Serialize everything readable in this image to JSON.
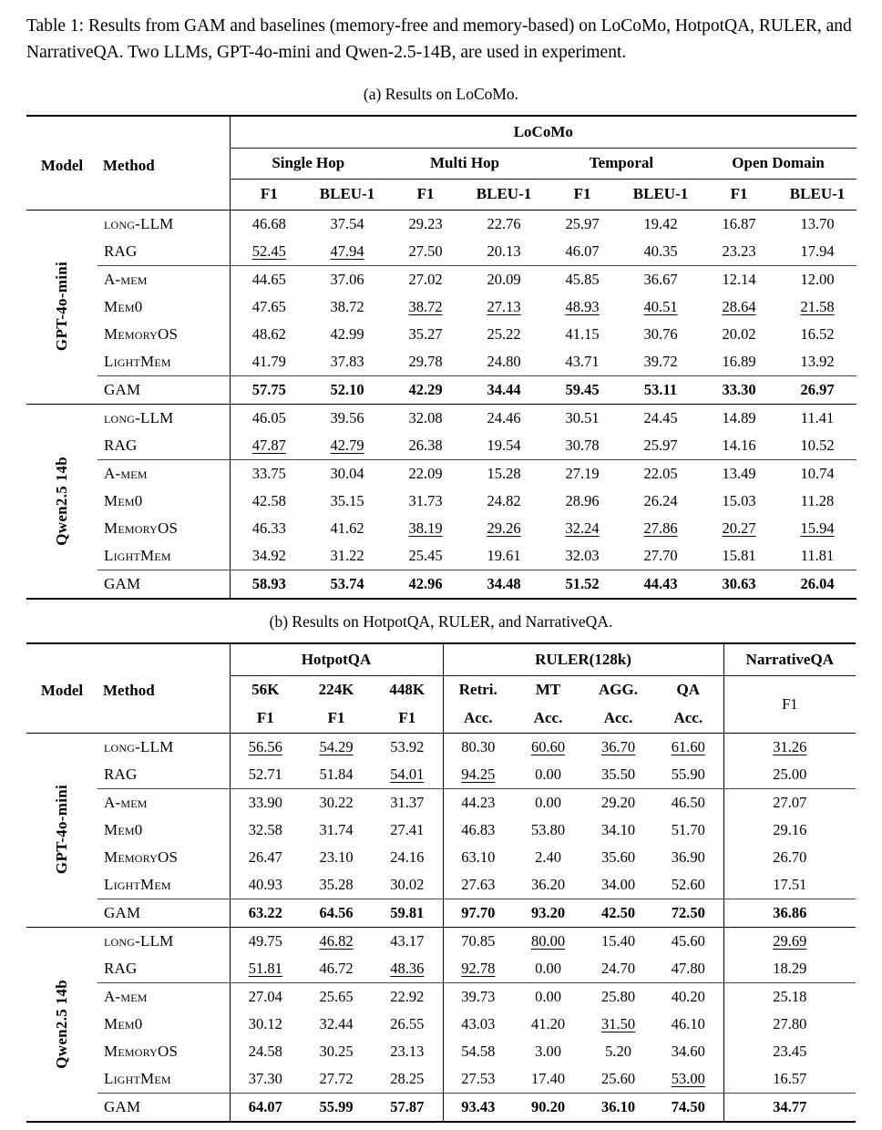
{
  "caption": "Table 1: Results from GAM and baselines (memory-free and memory-based) on LoCoMo, HotpotQA, RULER, and NarrativeQA. Two LLMs, GPT-4o-mini and Qwen-2.5-14B, are used in experiment.",
  "table_a": {
    "subcaption": "(a) Results on LoCoMo.",
    "header": {
      "model": "Model",
      "method": "Method",
      "dataset": "LoCoMo",
      "groups": [
        "Single Hop",
        "Multi Hop",
        "Temporal",
        "Open Domain"
      ],
      "metrics": [
        "F1",
        "BLEU-1"
      ]
    },
    "vline_value_cols": [
      0
    ],
    "blocks": [
      {
        "model": "GPT-4o-mini",
        "sep_below_block": true,
        "rows": [
          {
            "method": "long-LLM",
            "values": [
              "46.68",
              "37.54",
              "29.23",
              "22.76",
              "25.97",
              "19.42",
              "16.87",
              "13.70"
            ],
            "u": []
          },
          {
            "method": "RAG",
            "values": [
              "52.45",
              "47.94",
              "27.50",
              "20.13",
              "46.07",
              "40.35",
              "23.23",
              "17.94"
            ],
            "u": [
              0,
              1
            ],
            "sep_below": "partial"
          },
          {
            "method": "A-mem",
            "values": [
              "44.65",
              "37.06",
              "27.02",
              "20.09",
              "45.85",
              "36.67",
              "12.14",
              "12.00"
            ],
            "u": []
          },
          {
            "method": "Mem0",
            "values": [
              "47.65",
              "38.72",
              "38.72",
              "27.13",
              "48.93",
              "40.51",
              "28.64",
              "21.58"
            ],
            "u": [
              2,
              3,
              4,
              5,
              6,
              7
            ]
          },
          {
            "method": "MemoryOS",
            "values": [
              "48.62",
              "42.99",
              "35.27",
              "25.22",
              "41.15",
              "30.76",
              "20.02",
              "16.52"
            ],
            "u": []
          },
          {
            "method": "LightMem",
            "values": [
              "41.79",
              "37.83",
              "29.78",
              "24.80",
              "43.71",
              "39.72",
              "16.89",
              "13.92"
            ],
            "u": [],
            "sep_below": "partial"
          },
          {
            "method": "GAM",
            "values": [
              "57.75",
              "52.10",
              "42.29",
              "34.44",
              "59.45",
              "53.11",
              "33.30",
              "26.97"
            ],
            "u": [],
            "bold": true,
            "sep_below": "full"
          }
        ]
      },
      {
        "model": "Qwen2.5 14b",
        "sep_below_block": false,
        "rows": [
          {
            "method": "long-LLM",
            "values": [
              "46.05",
              "39.56",
              "32.08",
              "24.46",
              "30.51",
              "24.45",
              "14.89",
              "11.41"
            ],
            "u": []
          },
          {
            "method": "RAG",
            "values": [
              "47.87",
              "42.79",
              "26.38",
              "19.54",
              "30.78",
              "25.97",
              "14.16",
              "10.52"
            ],
            "u": [
              0,
              1
            ],
            "sep_below": "partial"
          },
          {
            "method": "A-mem",
            "values": [
              "33.75",
              "30.04",
              "22.09",
              "15.28",
              "27.19",
              "22.05",
              "13.49",
              "10.74"
            ],
            "u": []
          },
          {
            "method": "Mem0",
            "values": [
              "42.58",
              "35.15",
              "31.73",
              "24.82",
              "28.96",
              "26.24",
              "15.03",
              "11.28"
            ],
            "u": []
          },
          {
            "method": "MemoryOS",
            "values": [
              "46.33",
              "41.62",
              "38.19",
              "29.26",
              "32.24",
              "27.86",
              "20.27",
              "15.94"
            ],
            "u": [
              2,
              3,
              4,
              5,
              6,
              7
            ]
          },
          {
            "method": "LightMem",
            "values": [
              "34.92",
              "31.22",
              "25.45",
              "19.61",
              "32.03",
              "27.70",
              "15.81",
              "11.81"
            ],
            "u": [],
            "sep_below": "partial"
          },
          {
            "method": "GAM",
            "values": [
              "58.93",
              "53.74",
              "42.96",
              "34.48",
              "51.52",
              "44.43",
              "30.63",
              "26.04"
            ],
            "u": [],
            "bold": true
          }
        ]
      }
    ]
  },
  "table_b": {
    "subcaption": "(b) Results on HotpotQA, RULER, and NarrativeQA.",
    "header": {
      "model": "Model",
      "method": "Method",
      "group1": "HotpotQA",
      "group2": "RULER(128k)",
      "group3": "NarrativeQA",
      "hotpot_cols": [
        "56K",
        "224K",
        "448K"
      ],
      "hotpot_metric": "F1",
      "ruler_cols": [
        "Retri.",
        "MT",
        "AGG.",
        "QA"
      ],
      "ruler_metric": "Acc.",
      "narrative_metric": "F1"
    },
    "vline_value_cols": [
      0,
      3,
      7
    ],
    "blocks": [
      {
        "model": "GPT-4o-mini",
        "sep_below_block": true,
        "rows": [
          {
            "method": "long-LLM",
            "values": [
              "56.56",
              "54.29",
              "53.92",
              "80.30",
              "60.60",
              "36.70",
              "61.60",
              "31.26"
            ],
            "u": [
              0,
              1,
              4,
              5,
              6,
              7
            ]
          },
          {
            "method": "RAG",
            "values": [
              "52.71",
              "51.84",
              "54.01",
              "94.25",
              "0.00",
              "35.50",
              "55.90",
              "25.00"
            ],
            "u": [
              2,
              3
            ],
            "sep_below": "partial"
          },
          {
            "method": "A-mem",
            "values": [
              "33.90",
              "30.22",
              "31.37",
              "44.23",
              "0.00",
              "29.20",
              "46.50",
              "27.07"
            ],
            "u": []
          },
          {
            "method": "Mem0",
            "values": [
              "32.58",
              "31.74",
              "27.41",
              "46.83",
              "53.80",
              "34.10",
              "51.70",
              "29.16"
            ],
            "u": []
          },
          {
            "method": "MemoryOS",
            "values": [
              "26.47",
              "23.10",
              "24.16",
              "63.10",
              "2.40",
              "35.60",
              "36.90",
              "26.70"
            ],
            "u": []
          },
          {
            "method": "LightMem",
            "values": [
              "40.93",
              "35.28",
              "30.02",
              "27.63",
              "36.20",
              "34.00",
              "52.60",
              "17.51"
            ],
            "u": [],
            "sep_below": "partial"
          },
          {
            "method": "GAM",
            "values": [
              "63.22",
              "64.56",
              "59.81",
              "97.70",
              "93.20",
              "42.50",
              "72.50",
              "36.86"
            ],
            "u": [],
            "bold": true,
            "sep_below": "full"
          }
        ]
      },
      {
        "model": "Qwen2.5 14b",
        "sep_below_block": false,
        "rows": [
          {
            "method": "long-LLM",
            "values": [
              "49.75",
              "46.82",
              "43.17",
              "70.85",
              "80.00",
              "15.40",
              "45.60",
              "29.69"
            ],
            "u": [
              1,
              4,
              7
            ]
          },
          {
            "method": "RAG",
            "values": [
              "51.81",
              "46.72",
              "48.36",
              "92.78",
              "0.00",
              "24.70",
              "47.80",
              "18.29"
            ],
            "u": [
              0,
              2,
              3
            ],
            "sep_below": "partial"
          },
          {
            "method": "A-mem",
            "values": [
              "27.04",
              "25.65",
              "22.92",
              "39.73",
              "0.00",
              "25.80",
              "40.20",
              "25.18"
            ],
            "u": []
          },
          {
            "method": "Mem0",
            "values": [
              "30.12",
              "32.44",
              "26.55",
              "43.03",
              "41.20",
              "31.50",
              "46.10",
              "27.80"
            ],
            "u": [
              5
            ]
          },
          {
            "method": "MemoryOS",
            "values": [
              "24.58",
              "30.25",
              "23.13",
              "54.58",
              "3.00",
              "5.20",
              "34.60",
              "23.45"
            ],
            "u": []
          },
          {
            "method": "LightMem",
            "values": [
              "37.30",
              "27.72",
              "28.25",
              "27.53",
              "17.40",
              "25.60",
              "53.00",
              "16.57"
            ],
            "u": [
              6
            ],
            "sep_below": "partial"
          },
          {
            "method": "GAM",
            "values": [
              "64.07",
              "55.99",
              "57.87",
              "93.43",
              "90.20",
              "36.10",
              "74.50",
              "34.77"
            ],
            "u": [],
            "bold": true
          }
        ]
      }
    ]
  }
}
